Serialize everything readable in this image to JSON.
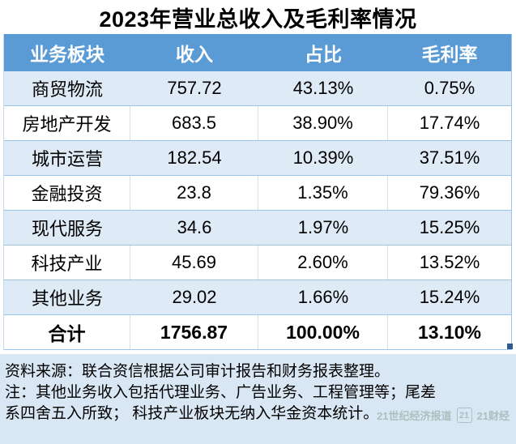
{
  "title": "2023年营业总收入及毛利率情况",
  "table": {
    "headers": [
      "业务板块",
      "收入",
      "占比",
      "毛利率"
    ],
    "rows": [
      {
        "cells": [
          "商贸物流",
          "757.72",
          "43.13%",
          "0.75%"
        ]
      },
      {
        "cells": [
          "房地产开发",
          "683.5",
          "38.90%",
          "17.74%"
        ]
      },
      {
        "cells": [
          "城市运营",
          "182.54",
          "10.39%",
          "37.51%"
        ]
      },
      {
        "cells": [
          "金融投资",
          "23.8",
          "1.35%",
          "79.36%"
        ]
      },
      {
        "cells": [
          "现代服务",
          "34.6",
          "1.97%",
          "15.25%"
        ]
      },
      {
        "cells": [
          "科技产业",
          "45.69",
          "2.60%",
          "13.52%"
        ]
      },
      {
        "cells": [
          "其他业务",
          "29.02",
          "1.66%",
          "15.24%"
        ]
      }
    ],
    "total": [
      "合计",
      "1756.87",
      "100.00%",
      "13.10%"
    ]
  },
  "notes": {
    "lines": [
      "资料来源：联合资信根据公司审计报告和财务报表整理。",
      "注：其他业务收入包括代理业务、广告业务、工程管理等；尾差",
      "系四舍五入所致； 科技产业板块无纳入华金资本统计。"
    ]
  },
  "watermark": {
    "left": "21世纪经济报道",
    "badge": "21",
    "right": "21财经"
  },
  "colors": {
    "header_blue": "#5B9BD5",
    "row_alt_blue": "#DEEBF7",
    "footer_blue": "#D9E6F3",
    "row_border_blue": "#9DC3E6",
    "fill_handle_blue": "#2E5C8A",
    "header_text": "#FFFFFF",
    "body_text": "#000000"
  },
  "chart_data": {
    "type": "table",
    "title": "2023年营业总收入及毛利率情况",
    "columns": [
      "业务板块",
      "收入",
      "占比",
      "毛利率"
    ],
    "rows": [
      [
        "商贸物流",
        757.72,
        "43.13%",
        "0.75%"
      ],
      [
        "房地产开发",
        683.5,
        "38.90%",
        "17.74%"
      ],
      [
        "城市运营",
        182.54,
        "10.39%",
        "37.51%"
      ],
      [
        "金融投资",
        23.8,
        "1.35%",
        "79.36%"
      ],
      [
        "现代服务",
        34.6,
        "1.97%",
        "15.25%"
      ],
      [
        "科技产业",
        45.69,
        "2.60%",
        "13.52%"
      ],
      [
        "其他业务",
        29.02,
        "1.66%",
        "15.24%"
      ],
      [
        "合计",
        1756.87,
        "100.00%",
        "13.10%"
      ]
    ],
    "notes": [
      "资料来源：联合资信根据公司审计报告和财务报表整理。",
      "注：其他业务收入包括代理业务、广告业务、工程管理等；尾差系四舍五入所致； 科技产业板块无纳入华金资本统计。"
    ]
  }
}
